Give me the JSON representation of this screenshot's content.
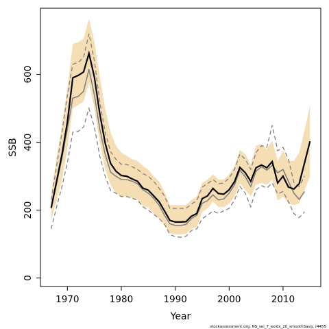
{
  "chart_data": {
    "type": "line",
    "xlabel": "Year",
    "ylabel": "SSB",
    "xlim": [
      1965,
      2017
    ],
    "ylim": [
      -25,
      795
    ],
    "x_ticks": [
      1970,
      1980,
      1990,
      2000,
      2010
    ],
    "y_ticks": [
      0,
      200,
      400,
      600
    ],
    "footnote": "stockassessment.org, NS_sei_7_exidx_20_smoothSavg, r4455",
    "colors": {
      "band": "#F5DEB3",
      "estimate": "#000000",
      "previous": "#808080",
      "previous_ci": "#808080"
    },
    "years": [
      1967,
      1968,
      1969,
      1970,
      1971,
      1972,
      1973,
      1974,
      1975,
      1976,
      1977,
      1978,
      1979,
      1980,
      1981,
      1982,
      1983,
      1984,
      1985,
      1986,
      1987,
      1988,
      1989,
      1990,
      1991,
      1992,
      1993,
      1994,
      1995,
      1996,
      1997,
      1998,
      1999,
      2000,
      2001,
      2002,
      2003,
      2004,
      2005,
      2006,
      2007,
      2008,
      2009,
      2010,
      2011,
      2012,
      2013,
      2014,
      2015
    ],
    "estimate": [
      207,
      285,
      365,
      460,
      590,
      597,
      607,
      662,
      592,
      485,
      398,
      338,
      315,
      302,
      300,
      292,
      285,
      265,
      259,
      242,
      225,
      198,
      170,
      165,
      165,
      166,
      182,
      190,
      234,
      242,
      264,
      249,
      247,
      260,
      284,
      326,
      310,
      285,
      325,
      333,
      325,
      343,
      280,
      300,
      268,
      262,
      278,
      340,
      403
    ],
    "upper": [
      250,
      355,
      450,
      560,
      690,
      695,
      705,
      765,
      695,
      595,
      500,
      430,
      390,
      370,
      360,
      350,
      345,
      330,
      320,
      300,
      285,
      255,
      215,
      215,
      215,
      215,
      230,
      240,
      280,
      290,
      305,
      290,
      290,
      305,
      330,
      378,
      365,
      335,
      390,
      395,
      380,
      405,
      345,
      375,
      345,
      345,
      370,
      435,
      510
    ],
    "lower": [
      170,
      230,
      290,
      380,
      500,
      510,
      520,
      575,
      500,
      400,
      320,
      275,
      250,
      240,
      240,
      235,
      232,
      212,
      208,
      190,
      175,
      155,
      132,
      128,
      128,
      130,
      145,
      150,
      195,
      205,
      225,
      210,
      208,
      220,
      240,
      280,
      260,
      240,
      275,
      280,
      275,
      290,
      228,
      240,
      220,
      215,
      220,
      260,
      300
    ],
    "previous": [
      205,
      280,
      355,
      440,
      530,
      535,
      550,
      615,
      540,
      440,
      365,
      312,
      300,
      290,
      290,
      285,
      278,
      260,
      250,
      235,
      215,
      185,
      160,
      155,
      155,
      158,
      175,
      185,
      220,
      228,
      245,
      230,
      233,
      250,
      275,
      318,
      298,
      270,
      315,
      328,
      318,
      332,
      310,
      320,
      285,
      250,
      232,
      255,
      null
    ],
    "previous_upper": [
      230,
      330,
      430,
      540,
      630,
      635,
      650,
      720,
      640,
      520,
      430,
      372,
      350,
      335,
      335,
      328,
      320,
      308,
      300,
      285,
      265,
      242,
      205,
      205,
      205,
      205,
      218,
      228,
      268,
      278,
      290,
      278,
      280,
      295,
      320,
      365,
      350,
      320,
      370,
      390,
      385,
      450,
      375,
      385,
      350,
      282,
      270,
      300,
      null
    ],
    "previous_lower": [
      145,
      210,
      270,
      340,
      430,
      432,
      445,
      500,
      445,
      360,
      300,
      258,
      250,
      240,
      240,
      235,
      230,
      210,
      200,
      188,
      175,
      160,
      128,
      122,
      120,
      123,
      140,
      145,
      175,
      185,
      198,
      190,
      198,
      205,
      230,
      270,
      250,
      210,
      260,
      272,
      265,
      280,
      248,
      255,
      225,
      190,
      178,
      195,
      null
    ]
  }
}
